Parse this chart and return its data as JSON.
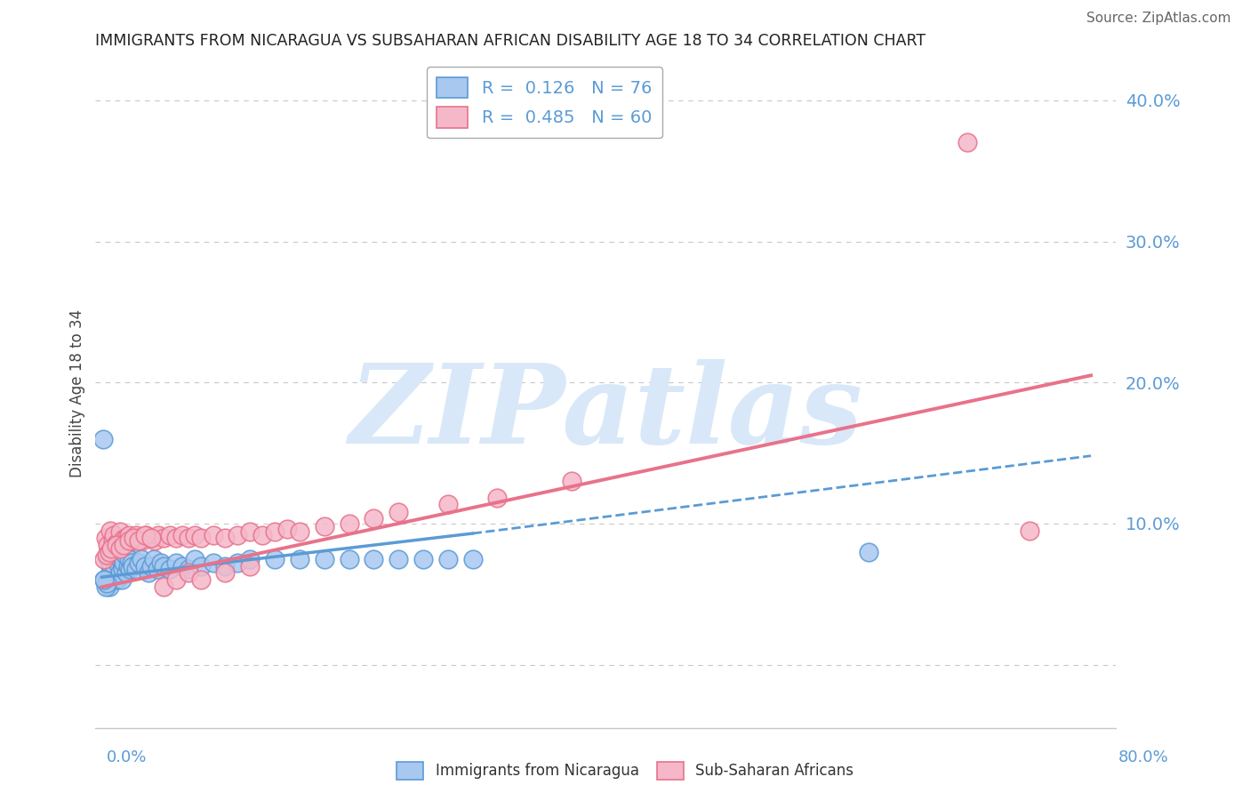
{
  "title": "IMMIGRANTS FROM NICARAGUA VS SUBSAHARAN AFRICAN DISABILITY AGE 18 TO 34 CORRELATION CHART",
  "source": "Source: ZipAtlas.com",
  "ylabel": "Disability Age 18 to 34",
  "legend_labels_bottom": [
    "Immigrants from Nicaragua",
    "Sub-Saharan Africans"
  ],
  "watermark_text": "ZIPatlas",
  "xlim": [
    -0.005,
    0.82
  ],
  "ylim": [
    -0.045,
    0.43
  ],
  "yticks": [
    0.0,
    0.1,
    0.2,
    0.3,
    0.4
  ],
  "ytick_labels": [
    "",
    "10.0%",
    "20.0%",
    "30.0%",
    "40.0%"
  ],
  "blue_color": "#5b9bd5",
  "pink_color": "#e8728a",
  "blue_scatter_face": "#a8c8f0",
  "blue_scatter_edge": "#5b9bd5",
  "pink_scatter_face": "#f5b8ca",
  "pink_scatter_edge": "#e8728a",
  "watermark_color": "#d8e8f8",
  "grid_color": "#c8c8c8",
  "blue_solid_line": {
    "x0": 0.0,
    "x1": 0.3,
    "y0": 0.062,
    "y1": 0.093
  },
  "blue_dash_line": {
    "x0": 0.3,
    "x1": 0.8,
    "y0": 0.093,
    "y1": 0.148
  },
  "pink_solid_line": {
    "x0": 0.0,
    "x1": 0.8,
    "y0": 0.055,
    "y1": 0.205
  },
  "blue_scatter_x": [
    0.005,
    0.006,
    0.007,
    0.008,
    0.009,
    0.01,
    0.011,
    0.012,
    0.013,
    0.014,
    0.005,
    0.006,
    0.007,
    0.008,
    0.009,
    0.01,
    0.011,
    0.012,
    0.013,
    0.014,
    0.015,
    0.016,
    0.017,
    0.018,
    0.019,
    0.02,
    0.021,
    0.022,
    0.023,
    0.024,
    0.015,
    0.016,
    0.017,
    0.018,
    0.019,
    0.02,
    0.021,
    0.022,
    0.023,
    0.024,
    0.025,
    0.028,
    0.03,
    0.032,
    0.035,
    0.038,
    0.04,
    0.042,
    0.045,
    0.048,
    0.05,
    0.055,
    0.06,
    0.065,
    0.07,
    0.075,
    0.08,
    0.09,
    0.1,
    0.11,
    0.12,
    0.14,
    0.16,
    0.18,
    0.2,
    0.22,
    0.24,
    0.26,
    0.28,
    0.3,
    0.002,
    0.003,
    0.004,
    0.001,
    0.002,
    0.62
  ],
  "blue_scatter_y": [
    0.075,
    0.08,
    0.07,
    0.085,
    0.065,
    0.075,
    0.08,
    0.07,
    0.06,
    0.085,
    0.06,
    0.055,
    0.065,
    0.07,
    0.075,
    0.065,
    0.06,
    0.075,
    0.08,
    0.07,
    0.075,
    0.08,
    0.07,
    0.075,
    0.08,
    0.065,
    0.07,
    0.075,
    0.08,
    0.07,
    0.065,
    0.06,
    0.068,
    0.072,
    0.078,
    0.065,
    0.07,
    0.075,
    0.068,
    0.072,
    0.07,
    0.068,
    0.072,
    0.075,
    0.07,
    0.065,
    0.07,
    0.075,
    0.068,
    0.072,
    0.07,
    0.068,
    0.072,
    0.07,
    0.068,
    0.075,
    0.07,
    0.072,
    0.07,
    0.072,
    0.075,
    0.075,
    0.075,
    0.075,
    0.075,
    0.075,
    0.075,
    0.075,
    0.075,
    0.075,
    0.06,
    0.055,
    0.058,
    0.16,
    0.06,
    0.08
  ],
  "pink_scatter_x": [
    0.003,
    0.005,
    0.007,
    0.009,
    0.01,
    0.012,
    0.015,
    0.018,
    0.02,
    0.022,
    0.025,
    0.028,
    0.03,
    0.033,
    0.036,
    0.04,
    0.043,
    0.046,
    0.05,
    0.055,
    0.06,
    0.065,
    0.07,
    0.075,
    0.08,
    0.09,
    0.1,
    0.11,
    0.12,
    0.13,
    0.14,
    0.15,
    0.16,
    0.18,
    0.2,
    0.22,
    0.24,
    0.28,
    0.32,
    0.38,
    0.002,
    0.004,
    0.006,
    0.008,
    0.012,
    0.015,
    0.018,
    0.022,
    0.026,
    0.03,
    0.035,
    0.04,
    0.05,
    0.06,
    0.07,
    0.08,
    0.1,
    0.12,
    0.7,
    0.75
  ],
  "pink_scatter_y": [
    0.09,
    0.085,
    0.095,
    0.088,
    0.092,
    0.086,
    0.094,
    0.089,
    0.09,
    0.092,
    0.088,
    0.092,
    0.09,
    0.088,
    0.092,
    0.09,
    0.088,
    0.092,
    0.09,
    0.092,
    0.09,
    0.092,
    0.09,
    0.092,
    0.09,
    0.092,
    0.09,
    0.092,
    0.094,
    0.092,
    0.094,
    0.096,
    0.094,
    0.098,
    0.1,
    0.104,
    0.108,
    0.114,
    0.118,
    0.13,
    0.075,
    0.078,
    0.08,
    0.082,
    0.085,
    0.082,
    0.085,
    0.088,
    0.09,
    0.088,
    0.092,
    0.09,
    0.055,
    0.06,
    0.065,
    0.06,
    0.065,
    0.07,
    0.37,
    0.095
  ]
}
